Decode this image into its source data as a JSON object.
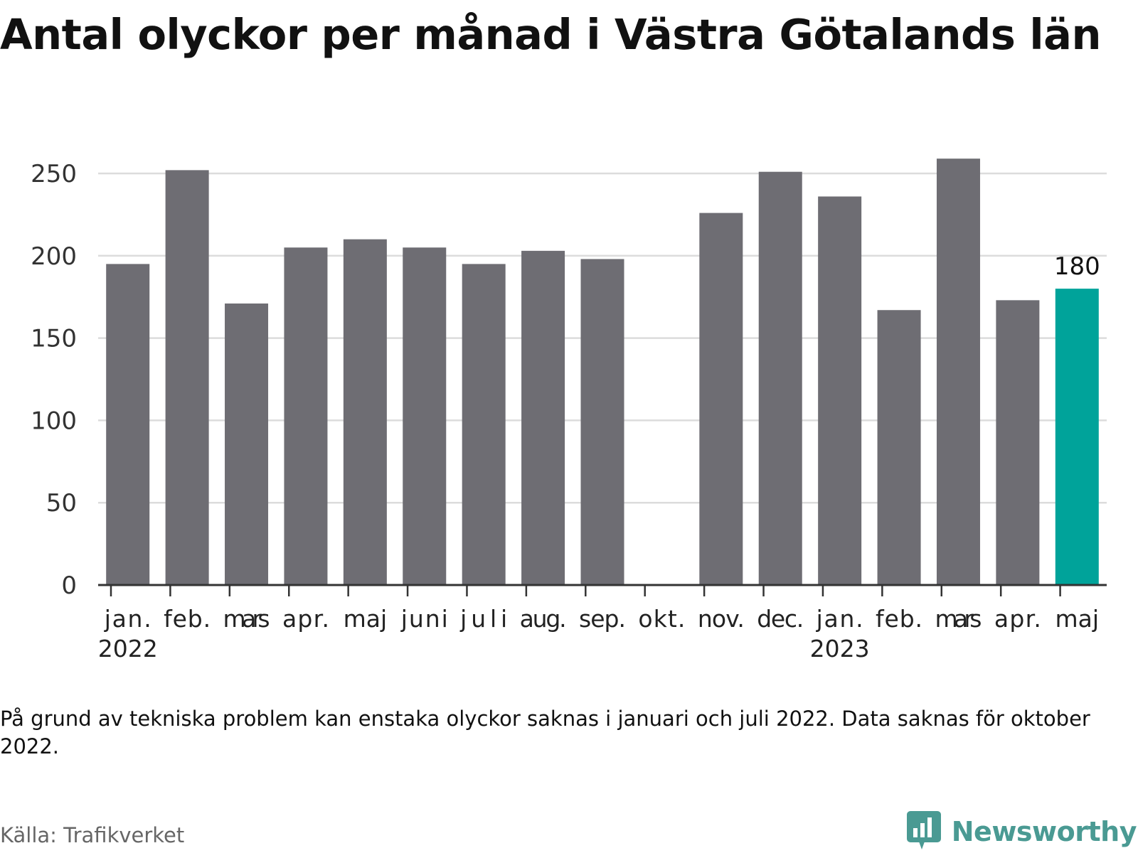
{
  "title": "Antal olyckor per månad i Västra Götalands län",
  "note": "På grund av tekniska problem kan enstaka olyckor saknas i januari och juli 2022. Data saknas för oktober 2022.",
  "source": "Källa: Trafikverket",
  "brand": {
    "name": "Newsworthy",
    "icon": "bar-chart-icon"
  },
  "colors": {
    "bar": "#6e6d73",
    "highlight": "#00a39a",
    "grid": "#dcdcdc",
    "axis": "#333333"
  },
  "chart_data": {
    "type": "bar",
    "categories": [
      "jan.",
      "feb.",
      "mars",
      "apr.",
      "maj",
      "juni",
      "juli",
      "aug.",
      "sep.",
      "okt.",
      "nov.",
      "dec.",
      "jan.",
      "feb.",
      "mars",
      "apr.",
      "maj"
    ],
    "year_labels": [
      "2022",
      "",
      "",
      "",
      "",
      "",
      "",
      "",
      "",
      "",
      "",
      "",
      "2023",
      "",
      "",
      "",
      ""
    ],
    "values": [
      195,
      252,
      171,
      205,
      210,
      205,
      195,
      203,
      198,
      null,
      226,
      251,
      236,
      167,
      259,
      173,
      180
    ],
    "highlight_index": 16,
    "data_labels": [
      {
        "index": 16,
        "text": "180"
      }
    ],
    "yticks": [
      0,
      50,
      100,
      150,
      200,
      250
    ],
    "ylim": [
      0,
      270
    ],
    "grid": true,
    "xlabel": "",
    "ylabel": ""
  }
}
